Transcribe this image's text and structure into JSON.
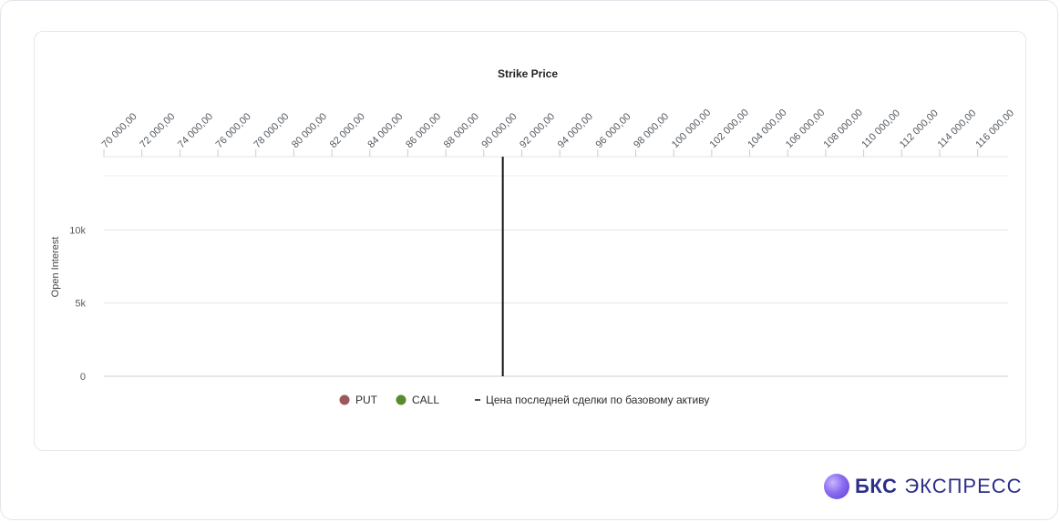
{
  "brand": {
    "bold": "БКС",
    "light": "ЭКСПРЕСС"
  },
  "chart_data": {
    "type": "area",
    "title": "Strike Price",
    "xlabel": "Strike Price",
    "ylabel": "Open Interest",
    "x_tick_labels": [
      "70 000,00",
      "72 000,00",
      "74 000,00",
      "76 000,00",
      "78 000,00",
      "80 000,00",
      "82 000,00",
      "84 000,00",
      "86 000,00",
      "88 000,00",
      "90 000,00",
      "92 000,00",
      "94 000,00",
      "96 000,00",
      "98 000,00",
      "100 000,00",
      "102 000,00",
      "104 000,00",
      "106 000,00",
      "108 000,00",
      "110 000,00",
      "112 000,00",
      "114 000,00",
      "116 000,00"
    ],
    "xlim": [
      70000,
      117600
    ],
    "ylim": [
      0,
      15000
    ],
    "y_ticks": [
      {
        "value": 0,
        "label": "0"
      },
      {
        "value": 5000,
        "label": "5k"
      },
      {
        "value": 10000,
        "label": "10k"
      }
    ],
    "grid": true,
    "legend_position": "bottom",
    "underlying_price": 91000,
    "series": [
      {
        "name": "PUT",
        "color": "#9b5a5a"
      },
      {
        "name": "CALL",
        "color": "#5a8a2e"
      },
      {
        "name": "Цена последней сделки по базовому активу",
        "color": "#111111"
      }
    ]
  }
}
